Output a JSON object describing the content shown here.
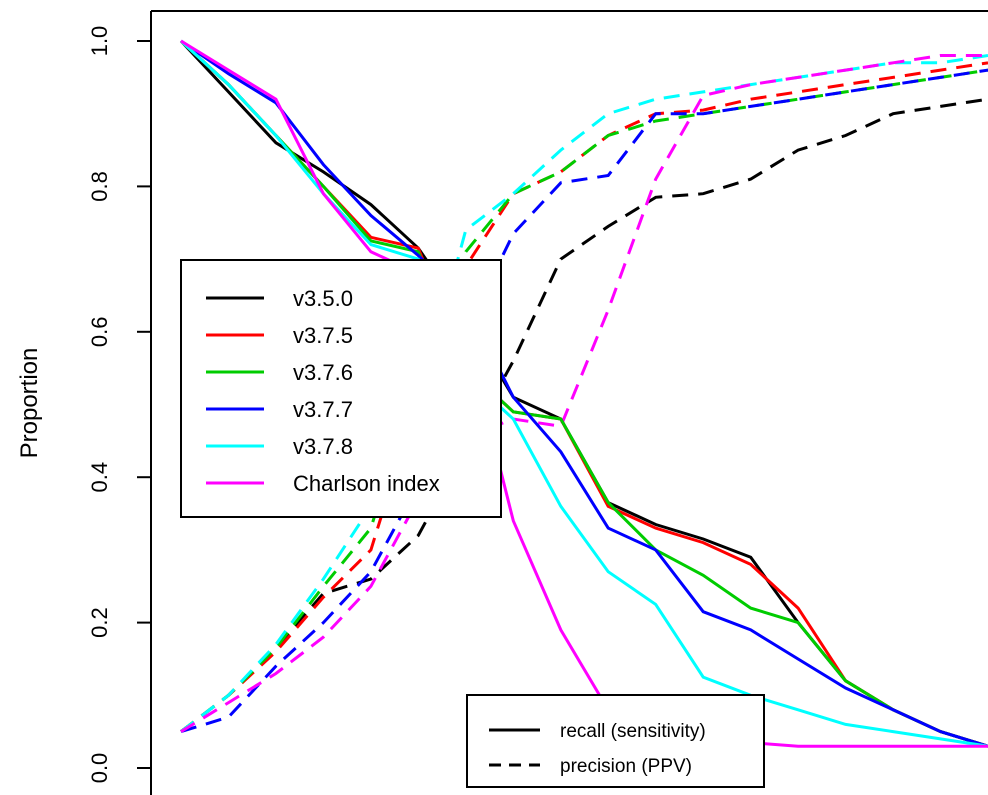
{
  "chart_data": {
    "type": "line",
    "title": "",
    "xlabel": "",
    "ylabel": "Proportion",
    "ylim": [
      0,
      1
    ],
    "xlim": [
      0,
      1
    ],
    "y_ticks": [
      "0.0",
      "0.2",
      "0.4",
      "0.6",
      "0.8",
      "1.0"
    ],
    "grid": false,
    "legend_position": "left",
    "linestyle_legend_position": "bottom-center",
    "x": [
      0.0,
      0.0588,
      0.1176,
      0.1765,
      0.2353,
      0.2941,
      0.3529,
      0.4118,
      0.4706,
      0.5294,
      0.5882,
      0.6471,
      0.7059,
      0.7647,
      0.8235,
      0.8824,
      0.9412,
      1.0
    ],
    "series": [
      {
        "name": "v3.5.0",
        "color": "#000000",
        "recall": [
          1.0,
          0.93,
          0.86,
          0.82,
          0.775,
          0.715,
          0.62,
          0.51,
          0.48,
          0.365,
          0.335,
          0.315,
          0.29,
          0.2,
          0.12,
          0.08,
          0.05,
          0.03
        ],
        "precision": [
          0.05,
          0.1,
          0.165,
          0.24,
          0.26,
          0.32,
          0.44,
          0.56,
          0.7,
          0.745,
          0.785,
          0.79,
          0.81,
          0.85,
          0.87,
          0.9,
          0.91,
          0.92
        ]
      },
      {
        "name": "v3.7.5",
        "color": "#ff0000",
        "recall": [
          1.0,
          0.94,
          0.87,
          0.8,
          0.73,
          0.715,
          0.55,
          0.49,
          0.48,
          0.36,
          0.33,
          0.31,
          0.28,
          0.22,
          0.12,
          0.08,
          0.05,
          0.03
        ],
        "precision": [
          0.05,
          0.1,
          0.16,
          0.235,
          0.3,
          0.51,
          0.69,
          0.79,
          0.82,
          0.87,
          0.9,
          0.905,
          0.92,
          0.93,
          0.94,
          0.95,
          0.96,
          0.97
        ]
      },
      {
        "name": "v3.7.6",
        "color": "#00cc00",
        "recall": [
          1.0,
          0.94,
          0.87,
          0.8,
          0.725,
          0.71,
          0.55,
          0.49,
          0.48,
          0.365,
          0.3,
          0.265,
          0.22,
          0.2,
          0.12,
          0.08,
          0.05,
          0.03
        ],
        "precision": [
          0.05,
          0.1,
          0.165,
          0.25,
          0.33,
          0.54,
          0.71,
          0.79,
          0.82,
          0.87,
          0.89,
          0.9,
          0.91,
          0.92,
          0.93,
          0.94,
          0.95,
          0.96
        ]
      },
      {
        "name": "v3.7.7",
        "color": "#0000ff",
        "recall": [
          1.0,
          0.955,
          0.915,
          0.83,
          0.76,
          0.705,
          0.64,
          0.51,
          0.435,
          0.33,
          0.3,
          0.215,
          0.19,
          0.15,
          0.11,
          0.08,
          0.05,
          0.03
        ],
        "precision": [
          0.05,
          0.07,
          0.14,
          0.2,
          0.27,
          0.39,
          0.6,
          0.735,
          0.805,
          0.815,
          0.9,
          0.9,
          0.91,
          0.92,
          0.93,
          0.94,
          0.95,
          0.96
        ]
      },
      {
        "name": "v3.7.8",
        "color": "#00ffff",
        "recall": [
          1.0,
          0.94,
          0.87,
          0.79,
          0.72,
          0.7,
          0.54,
          0.48,
          0.36,
          0.27,
          0.225,
          0.125,
          0.1,
          0.08,
          0.06,
          0.05,
          0.04,
          0.03
        ],
        "precision": [
          0.05,
          0.1,
          0.17,
          0.26,
          0.36,
          0.5,
          0.74,
          0.79,
          0.85,
          0.9,
          0.92,
          0.93,
          0.94,
          0.95,
          0.96,
          0.97,
          0.97,
          0.98
        ]
      },
      {
        "name": "Charlson index",
        "color": "#ff00ff",
        "recall": [
          1.0,
          0.96,
          0.92,
          0.79,
          0.71,
          0.68,
          0.6,
          0.34,
          0.19,
          0.08,
          0.055,
          0.04,
          0.035,
          0.03,
          0.03,
          0.03,
          0.03,
          0.03
        ],
        "precision": [
          0.05,
          0.09,
          0.13,
          0.18,
          0.25,
          0.37,
          0.455,
          0.48,
          0.47,
          0.63,
          0.81,
          0.925,
          0.94,
          0.95,
          0.96,
          0.97,
          0.98,
          0.98
        ]
      }
    ],
    "linestyle_legend": [
      {
        "label": "recall (sensitivity)",
        "style": "solid"
      },
      {
        "label": "precision (PPV)",
        "style": "dashed"
      }
    ]
  }
}
